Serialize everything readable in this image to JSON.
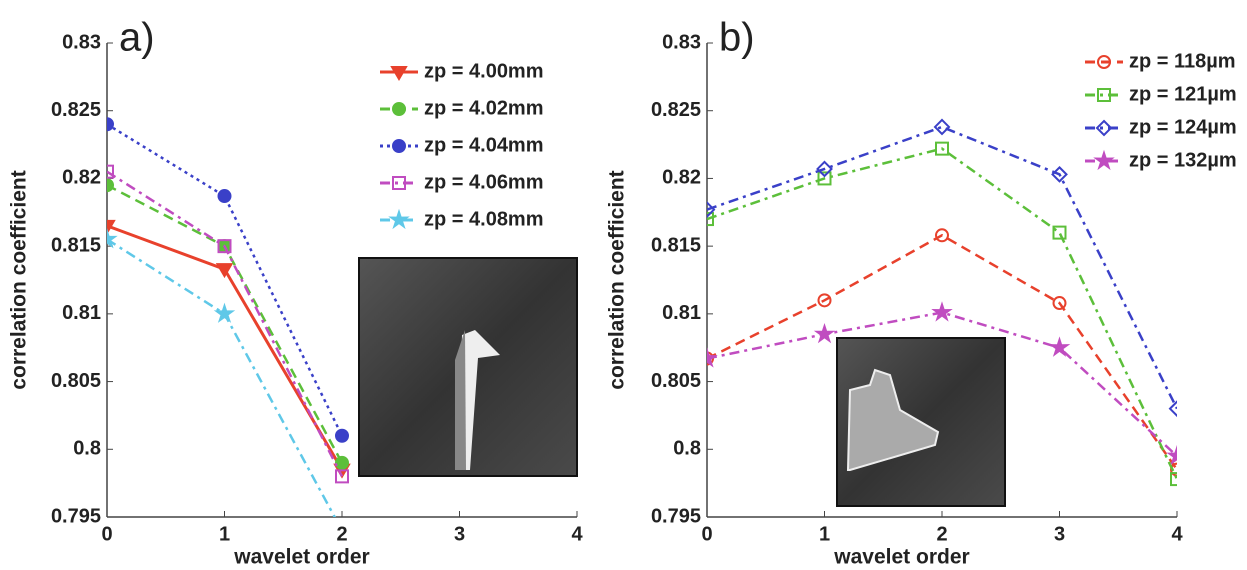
{
  "chart_data": [
    {
      "type": "line",
      "title": "a)",
      "xlabel": "wavelet order",
      "ylabel": "correlation coefficient",
      "x": [
        0,
        1,
        2
      ],
      "xlim": [
        0,
        4
      ],
      "xticks": [
        0,
        1,
        2,
        3,
        4
      ],
      "ylim": [
        0.795,
        0.83
      ],
      "yticks": [
        0.795,
        0.8,
        0.805,
        0.81,
        0.815,
        0.82,
        0.825,
        0.83
      ],
      "legend": "upper right",
      "series": [
        {
          "name": "zp = 4.00mm",
          "color": "#e8412c",
          "dash": "solid",
          "marker": "triangle-down",
          "filled": true,
          "values": [
            0.8165,
            0.8133,
            0.7985
          ]
        },
        {
          "name": "zp = 4.02mm",
          "color": "#5cbf3a",
          "dash": "dashed",
          "marker": "circle",
          "filled": true,
          "values": [
            0.8195,
            0.815,
            0.799
          ]
        },
        {
          "name": "zp = 4.04mm",
          "color": "#3a40c8",
          "dash": "dotted",
          "marker": "circle",
          "filled": true,
          "values": [
            0.824,
            0.8187,
            0.801
          ]
        },
        {
          "name": "zp = 4.06mm",
          "color": "#c04cc0",
          "dash": "dashdot",
          "marker": "square",
          "filled": false,
          "values": [
            0.8205,
            0.815,
            0.798
          ]
        },
        {
          "name": "zp = 4.08mm",
          "color": "#5fc8e8",
          "dash": "dashdot",
          "marker": "star",
          "filled": true,
          "values": [
            0.8155,
            0.81,
            0.794
          ]
        }
      ]
    },
    {
      "type": "line",
      "title": "b)",
      "xlabel": "wavelet order",
      "ylabel": "correlation coefficient",
      "x": [
        0,
        1,
        2,
        3,
        4
      ],
      "xlim": [
        0,
        4
      ],
      "xticks": [
        0,
        1,
        2,
        3,
        4
      ],
      "ylim": [
        0.795,
        0.83
      ],
      "yticks": [
        0.795,
        0.8,
        0.805,
        0.81,
        0.815,
        0.82,
        0.825,
        0.83
      ],
      "legend": "upper right",
      "series": [
        {
          "name": "zp = 118µm",
          "color": "#e8412c",
          "dash": "dashed",
          "marker": "circle",
          "filled": false,
          "values": [
            0.8067,
            0.811,
            0.8158,
            0.8108,
            0.7985
          ]
        },
        {
          "name": "zp = 121µm",
          "color": "#5cbf3a",
          "dash": "dashdot",
          "marker": "square",
          "filled": false,
          "values": [
            0.817,
            0.82,
            0.8222,
            0.816,
            0.7978
          ]
        },
        {
          "name": "zp = 124µm",
          "color": "#3a40c8",
          "dash": "dashdot",
          "marker": "diamond",
          "filled": false,
          "values": [
            0.8177,
            0.8207,
            0.8238,
            0.8203,
            0.803
          ]
        },
        {
          "name": "zp = 132µm",
          "color": "#c04cc0",
          "dash": "dashdot",
          "marker": "star",
          "filled": true,
          "values": [
            0.8067,
            0.8085,
            0.8101,
            0.8075,
            0.7995
          ]
        }
      ]
    }
  ]
}
